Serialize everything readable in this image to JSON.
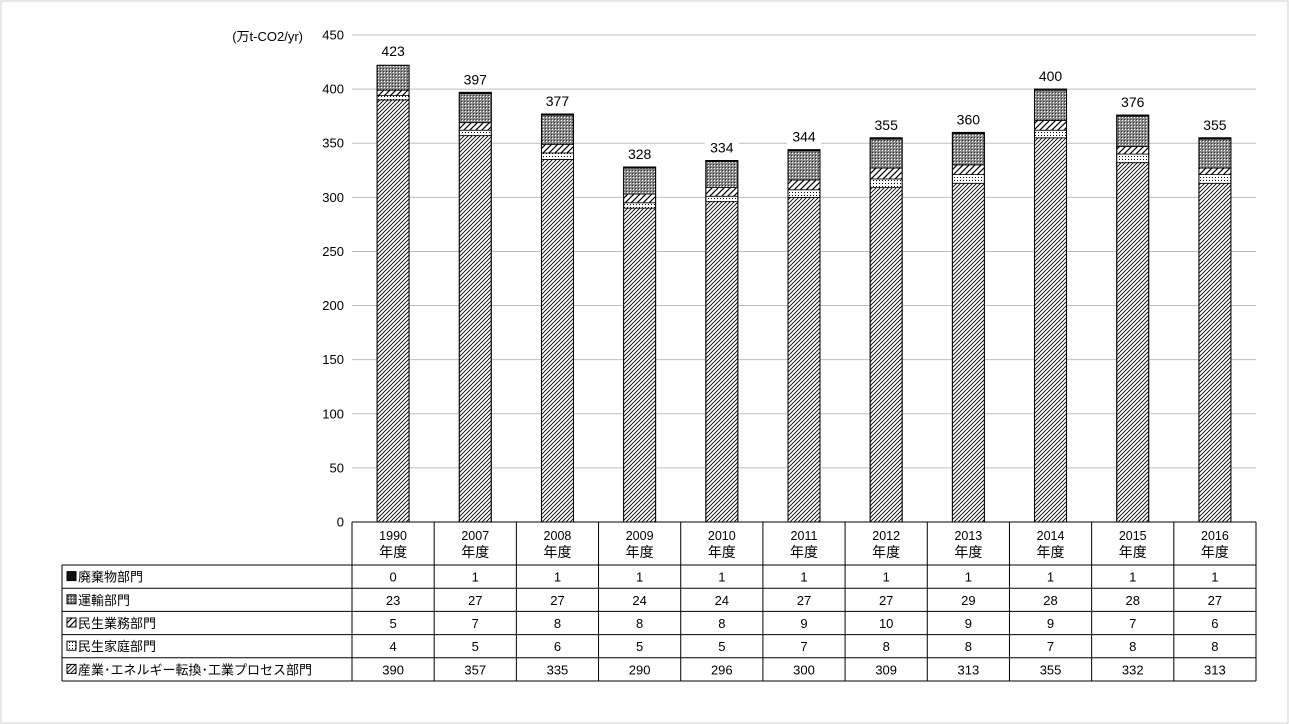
{
  "chart_data": {
    "type": "bar",
    "stacked": true,
    "unit_label": "(万t-CO2/yr)",
    "categories": [
      [
        "1990",
        "年度"
      ],
      [
        "2007",
        "年度"
      ],
      [
        "2008",
        "年度"
      ],
      [
        "2009",
        "年度"
      ],
      [
        "2010",
        "年度"
      ],
      [
        "2011",
        "年度"
      ],
      [
        "2012",
        "年度"
      ],
      [
        "2013",
        "年度"
      ],
      [
        "2014",
        "年度"
      ],
      [
        "2015",
        "年度"
      ],
      [
        "2016",
        "年度"
      ]
    ],
    "ylim": [
      0,
      450
    ],
    "yticks": [
      0,
      50,
      100,
      150,
      200,
      250,
      300,
      350,
      400,
      450
    ],
    "grid": true,
    "legend_placement": "data-table-left",
    "series": [
      {
        "name": "産業･エネルギー転換･工業プロセス部門",
        "values": [
          390,
          357,
          335,
          290,
          296,
          300,
          309,
          313,
          355,
          332,
          313
        ],
        "pattern": "diag-hatch"
      },
      {
        "name": "民生家庭部門",
        "values": [
          4,
          5,
          6,
          5,
          5,
          7,
          8,
          8,
          7,
          8,
          8
        ],
        "pattern": "dots"
      },
      {
        "name": "民生業務部門",
        "values": [
          5,
          7,
          8,
          8,
          8,
          9,
          10,
          9,
          9,
          7,
          6
        ],
        "pattern": "wide-diag"
      },
      {
        "name": "運輸部門",
        "values": [
          23,
          27,
          27,
          24,
          24,
          27,
          27,
          29,
          28,
          28,
          27
        ],
        "pattern": "dense-gray"
      },
      {
        "name": "廃棄物部門",
        "values": [
          0,
          1,
          1,
          1,
          1,
          1,
          1,
          1,
          1,
          1,
          1
        ],
        "pattern": "black"
      }
    ],
    "table_rows": [
      {
        "label": "廃棄物部門",
        "series_index": 4
      },
      {
        "label": "運輸部門",
        "series_index": 3
      },
      {
        "label": "民生業務部門",
        "series_index": 2
      },
      {
        "label": "民生家庭部門",
        "series_index": 1
      },
      {
        "label": "産業･エネルギー転換･工業プロセス部門",
        "series_index": 0
      }
    ],
    "totals": [
      423,
      397,
      377,
      328,
      334,
      344,
      355,
      360,
      400,
      376,
      355
    ],
    "colors": {
      "grid": "#bfbfbf",
      "bar_outline": "#000000",
      "table_border": "#000000",
      "text": "#000000"
    }
  }
}
